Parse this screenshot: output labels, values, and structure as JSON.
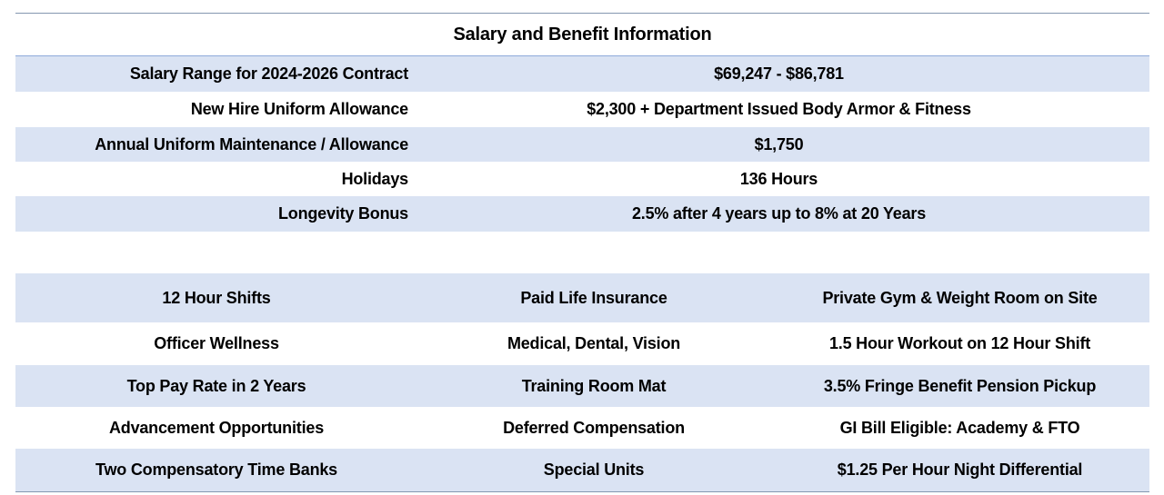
{
  "salary_table": {
    "title": "Salary and Benefit Information",
    "rows": [
      [
        "Salary Range for 2024-2026 Contract",
        "$69,247 - $86,781"
      ],
      [
        "New Hire Uniform Allowance",
        "$2,300 + Department Issued Body Armor & Fitness"
      ],
      [
        "Annual Uniform Maintenance / Allowance",
        "$1,750"
      ],
      [
        "Holidays",
        "136 Hours"
      ],
      [
        "Longevity Bonus",
        "2.5% after 4 years up to 8% at 20 Years"
      ]
    ]
  },
  "benefits_table": {
    "rows": [
      [
        "12 Hour Shifts",
        "Paid Life Insurance",
        "Private Gym & Weight Room on Site"
      ],
      [
        "Officer Wellness",
        "Medical, Dental, Vision",
        "1.5 Hour Workout on 12 Hour Shift"
      ],
      [
        "Top Pay Rate in 2 Years",
        "Training Room Mat",
        "3.5% Fringe Benefit Pension Pickup"
      ],
      [
        "Advancement Opportunities",
        "Deferred Compensation",
        "GI Bill Eligible: Academy & FTO"
      ],
      [
        "Two Compensatory Time Banks",
        "Special Units",
        "$1.25 Per Hour Night Differential"
      ]
    ]
  }
}
